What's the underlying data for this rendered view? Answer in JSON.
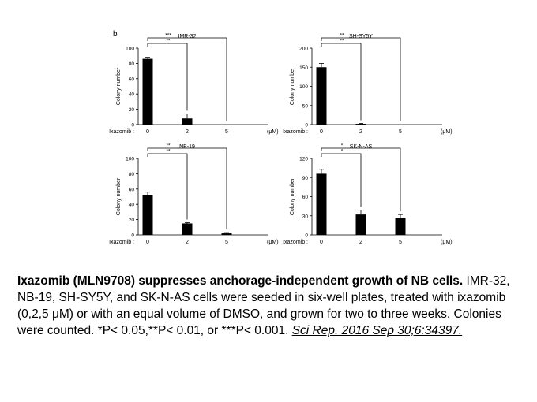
{
  "panel_label": "b",
  "chart_data": [
    {
      "type": "bar",
      "title": "IMR-32",
      "ylabel": "Colony number",
      "xlabel_prefix": "Ixazomib :",
      "unit": "(μM)",
      "categories": [
        "0",
        "2",
        "5"
      ],
      "values": [
        86,
        8,
        0
      ],
      "errors": [
        2,
        6,
        0
      ],
      "ylim": [
        0,
        100
      ],
      "yticks": [
        0,
        20,
        40,
        60,
        80,
        100
      ],
      "significance": [
        {
          "from": 0,
          "to": 1,
          "label": "**"
        },
        {
          "from": 0,
          "to": 2,
          "label": "***"
        }
      ]
    },
    {
      "type": "bar",
      "title": "SH-SY5Y",
      "ylabel": "Colony number",
      "xlabel_prefix": "Ixazomib :",
      "unit": "(μM)",
      "categories": [
        "0",
        "2",
        "5"
      ],
      "values": [
        150,
        2,
        0
      ],
      "errors": [
        10,
        1,
        0
      ],
      "ylim": [
        0,
        200
      ],
      "yticks": [
        0,
        50,
        100,
        150,
        200
      ],
      "significance": [
        {
          "from": 0,
          "to": 1,
          "label": "**"
        },
        {
          "from": 0,
          "to": 2,
          "label": "**"
        }
      ]
    },
    {
      "type": "bar",
      "title": "NB-19",
      "ylabel": "Colony number",
      "xlabel_prefix": "Ixazomib :",
      "unit": "(μM)",
      "categories": [
        "0",
        "2",
        "5"
      ],
      "values": [
        52,
        15,
        2
      ],
      "errors": [
        4,
        1,
        1
      ],
      "ylim": [
        0,
        100
      ],
      "yticks": [
        0,
        20,
        40,
        60,
        80,
        100
      ],
      "significance": [
        {
          "from": 0,
          "to": 1,
          "label": "**"
        },
        {
          "from": 0,
          "to": 2,
          "label": "**"
        }
      ]
    },
    {
      "type": "bar",
      "title": "SK-N-AS",
      "ylabel": "Colony number",
      "xlabel_prefix": "Ixazomib :",
      "unit": "(μM)",
      "categories": [
        "0",
        "2",
        "5"
      ],
      "values": [
        96,
        32,
        27
      ],
      "errors": [
        7,
        7,
        5
      ],
      "ylim": [
        0,
        120
      ],
      "yticks": [
        0,
        30,
        60,
        90,
        120
      ],
      "significance": [
        {
          "from": 0,
          "to": 1,
          "label": "*"
        },
        {
          "from": 0,
          "to": 2,
          "label": "*"
        }
      ]
    }
  ],
  "caption": {
    "bold": "Ixazomib (MLN9708) suppresses anchorage-independent growth of NB cells.",
    "body": " IMR-32, NB-19, SH-SY5Y, and SK-N-AS cells were seeded in six-well plates, treated with ixazomib (0,2,5 μM) or with an equal volume of DMSO, and grown for two to three weeks. Colonies were counted. *P< 0.05,**P< 0.01, or ***P< 0.001. ",
    "citation": "Sci Rep. 2016 Sep 30;6:34397."
  }
}
